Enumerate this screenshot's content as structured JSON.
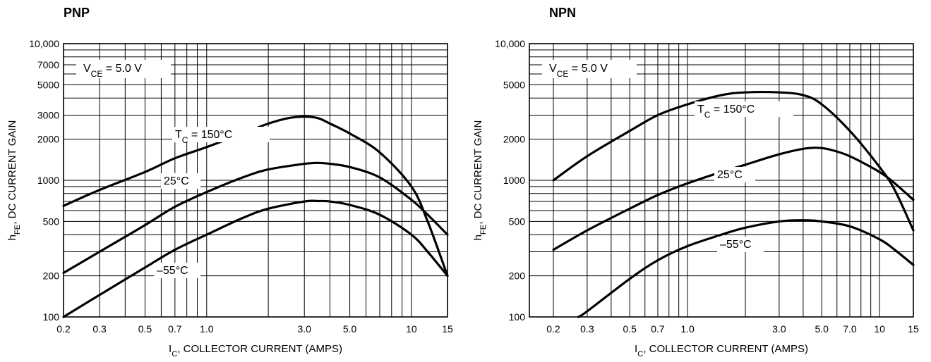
{
  "chart_data": [
    {
      "type": "line",
      "title": "PNP",
      "xlabel": {
        "main": "I",
        "sub": "C",
        "rest": ", COLLECTOR CURRENT (AMPS)"
      },
      "ylabel": {
        "main": "h",
        "sub": "FE",
        "rest": ", DC CURRENT GAIN"
      },
      "x_scale": "log",
      "y_scale": "log",
      "xlim": [
        0.2,
        15
      ],
      "ylim": [
        100,
        10000
      ],
      "grid": true,
      "x_ticks": [
        {
          "value": 0.2,
          "label": "0.2"
        },
        {
          "value": 0.3,
          "label": "0.3"
        },
        {
          "value": 0.5,
          "label": "0.5"
        },
        {
          "value": 0.7,
          "label": "0.7"
        },
        {
          "value": 1.0,
          "label": "1.0"
        },
        {
          "value": 3.0,
          "label": "3.0"
        },
        {
          "value": 5.0,
          "label": "5.0"
        },
        {
          "value": 10,
          "label": "10"
        },
        {
          "value": 15,
          "label": "15"
        }
      ],
      "y_ticks": [
        {
          "value": 100,
          "label": "100"
        },
        {
          "value": 200,
          "label": "200"
        },
        {
          "value": 500,
          "label": "500"
        },
        {
          "value": 1000,
          "label": "1000"
        },
        {
          "value": 2000,
          "label": "2000"
        },
        {
          "value": 3000,
          "label": "3000"
        },
        {
          "value": 5000,
          "label": "5000"
        },
        {
          "value": 7000,
          "label": "7000"
        },
        {
          "value": 10000,
          "label": "10,000"
        }
      ],
      "condition_label": {
        "main": "V",
        "sub": "CE",
        "rest": " = 5.0 V"
      },
      "series": [
        {
          "name": {
            "main": "T",
            "sub": "C",
            "rest": " = 150°C"
          },
          "x": [
            0.2,
            0.3,
            0.5,
            0.7,
            1.0,
            1.5,
            2.0,
            2.5,
            3.0,
            3.5,
            4.0,
            5.0,
            7.0,
            10,
            12,
            15
          ],
          "y": [
            650,
            850,
            1150,
            1450,
            1750,
            2200,
            2600,
            2850,
            2920,
            2850,
            2600,
            2200,
            1600,
            900,
            500,
            200
          ]
        },
        {
          "name": {
            "main": "",
            "sub": "",
            "rest": "25°C"
          },
          "x": [
            0.2,
            0.3,
            0.5,
            0.7,
            1.0,
            1.5,
            2.0,
            3.0,
            3.5,
            4.0,
            5.0,
            7.0,
            10,
            12,
            15
          ],
          "y": [
            210,
            300,
            470,
            640,
            820,
            1050,
            1200,
            1320,
            1340,
            1320,
            1250,
            1050,
            720,
            560,
            400
          ]
        },
        {
          "name": {
            "main": "",
            "sub": "",
            "rest": "–55°C"
          },
          "x": [
            0.2,
            0.3,
            0.5,
            0.7,
            1.0,
            1.5,
            2.0,
            3.0,
            3.5,
            4.0,
            5.0,
            7.0,
            10,
            12,
            15
          ],
          "y": [
            100,
            145,
            230,
            310,
            400,
            530,
            620,
            700,
            705,
            700,
            660,
            560,
            400,
            300,
            200
          ]
        }
      ]
    },
    {
      "type": "line",
      "title": "NPN",
      "xlabel": {
        "main": "I",
        "sub": "C",
        "rest": ", COLLECTOR CURRENT (AMPS)"
      },
      "ylabel": {
        "main": "h",
        "sub": "FE",
        "rest": ", DC CURRENT GAIN"
      },
      "x_scale": "log",
      "y_scale": "log",
      "xlim": [
        0.15,
        15
      ],
      "ylim": [
        100,
        10000
      ],
      "grid": true,
      "x_ticks": [
        {
          "value": 0.2,
          "label": "0.2"
        },
        {
          "value": 0.3,
          "label": "0.3"
        },
        {
          "value": 0.5,
          "label": "0.5"
        },
        {
          "value": 0.7,
          "label": "0.7"
        },
        {
          "value": 1.0,
          "label": "1.0"
        },
        {
          "value": 3.0,
          "label": "3.0"
        },
        {
          "value": 5.0,
          "label": "5.0"
        },
        {
          "value": 7.0,
          "label": "7.0"
        },
        {
          "value": 10,
          "label": "10"
        },
        {
          "value": 15,
          "label": "15"
        }
      ],
      "y_ticks": [
        {
          "value": 100,
          "label": "100"
        },
        {
          "value": 200,
          "label": "200"
        },
        {
          "value": 500,
          "label": "500"
        },
        {
          "value": 1000,
          "label": "1000"
        },
        {
          "value": 2000,
          "label": "2000"
        },
        {
          "value": 5000,
          "label": "5000"
        },
        {
          "value": 10000,
          "label": "10,000"
        }
      ],
      "condition_label": {
        "main": "V",
        "sub": "CE",
        "rest": " = 5.0 V"
      },
      "series": [
        {
          "name": {
            "main": "T",
            "sub": "C",
            "rest": " = 150°C"
          },
          "x": [
            0.2,
            0.3,
            0.5,
            0.7,
            1.0,
            1.5,
            2.0,
            3.0,
            4.0,
            5.0,
            7.0,
            10,
            12,
            15
          ],
          "y": [
            1000,
            1500,
            2300,
            3000,
            3600,
            4200,
            4400,
            4400,
            4200,
            3600,
            2300,
            1250,
            850,
            430
          ]
        },
        {
          "name": {
            "main": "",
            "sub": "",
            "rest": "25°C"
          },
          "x": [
            0.2,
            0.3,
            0.5,
            0.7,
            1.0,
            1.5,
            2.0,
            3.0,
            4.0,
            4.7,
            5.5,
            7.0,
            10,
            12,
            15
          ],
          "y": [
            310,
            430,
            620,
            780,
            950,
            1150,
            1300,
            1550,
            1700,
            1730,
            1680,
            1500,
            1150,
            950,
            720
          ]
        },
        {
          "name": {
            "main": "",
            "sub": "",
            "rest": "–55°C"
          },
          "x": [
            0.27,
            0.3,
            0.5,
            0.7,
            1.0,
            1.5,
            2.0,
            3.0,
            4.0,
            5.0,
            7.0,
            10,
            12,
            15
          ],
          "y": [
            100,
            110,
            190,
            260,
            330,
            400,
            450,
            500,
            510,
            500,
            460,
            370,
            310,
            240
          ]
        }
      ]
    }
  ]
}
